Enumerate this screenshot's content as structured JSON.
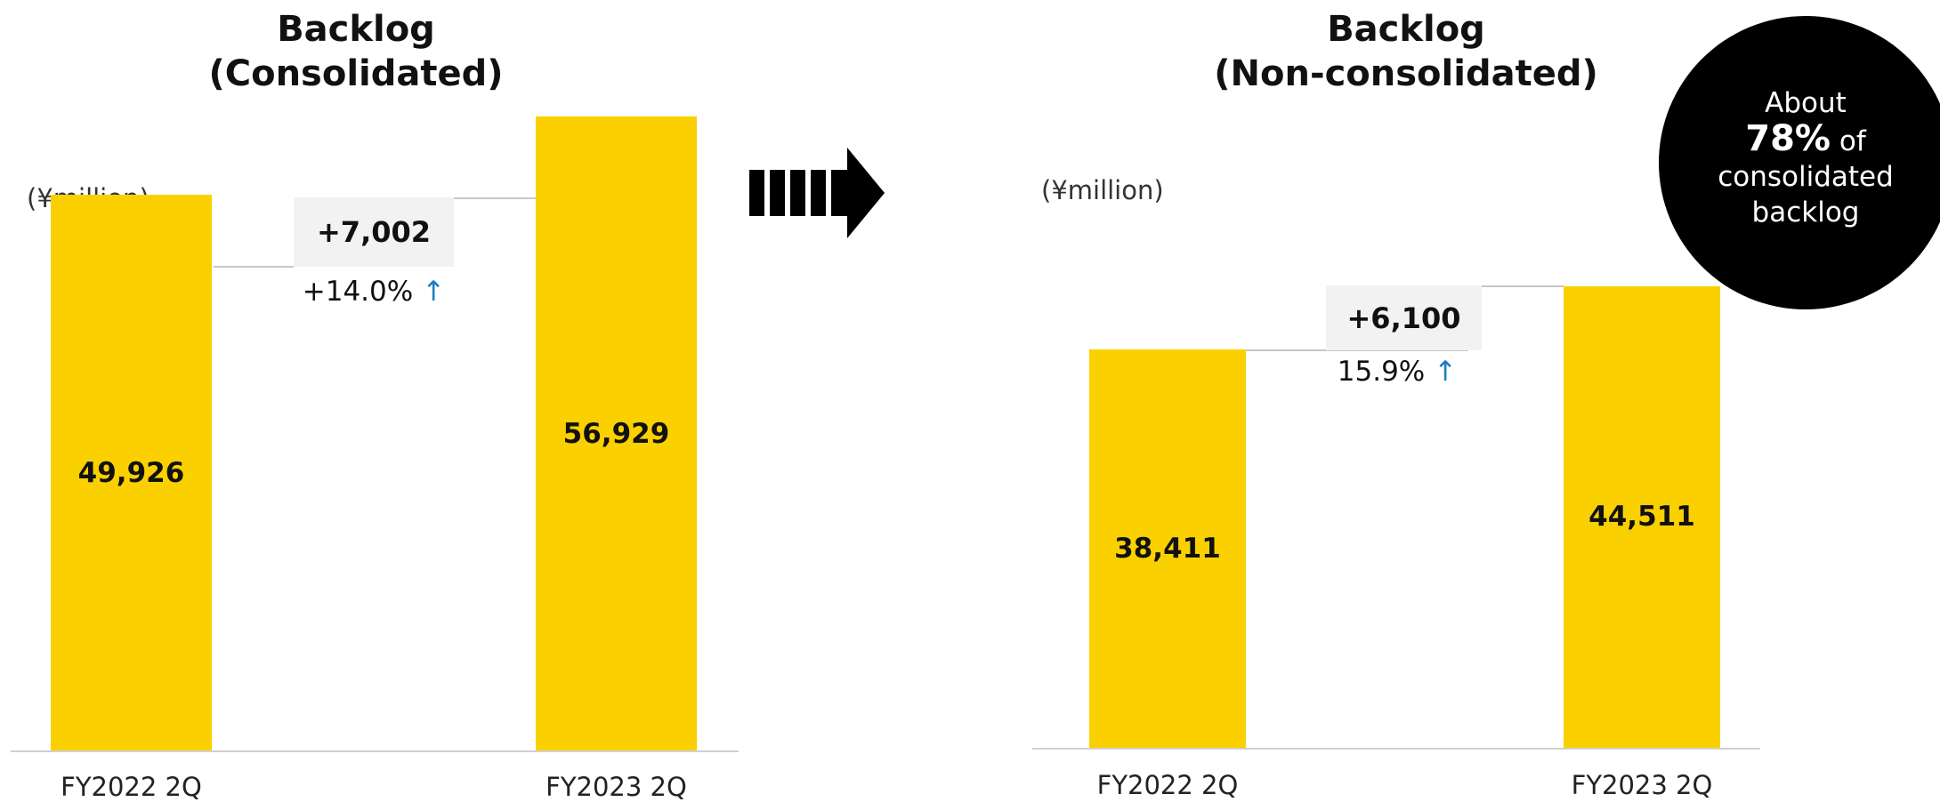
{
  "colors": {
    "bar": "#fbd000",
    "arrow_up": "#1b7fc2",
    "badge_bg": "#000000"
  },
  "chart_data": [
    {
      "type": "bar",
      "title": "Backlog (Consolidated)",
      "title_lines": [
        "Backlog",
        "(Consolidated)"
      ],
      "unit": "(¥million)",
      "categories": [
        "FY2022 2Q",
        "FY2023 2Q"
      ],
      "values": [
        49926,
        56929
      ],
      "value_labels": [
        "49,926",
        "56,929"
      ],
      "ylim": [
        0,
        60000
      ],
      "grid": false,
      "change": {
        "label": "+7,002",
        "pct": "+14.0%",
        "arrow": "↑"
      }
    },
    {
      "type": "bar",
      "title": "Backlog (Non-consolidated)",
      "title_lines": [
        "Backlog",
        "(Non-consolidated)"
      ],
      "unit": "(¥million)",
      "categories": [
        "FY2022 2Q",
        "FY2023 2Q"
      ],
      "values": [
        38411,
        44511
      ],
      "value_labels": [
        "38,411",
        "44,511"
      ],
      "ylim": [
        0,
        50000
      ],
      "grid": false,
      "change": {
        "label": "+6,100",
        "pct": "15.9%",
        "arrow": "↑"
      }
    }
  ],
  "transition_icon": "right-arrow-icon",
  "badge": {
    "line1": "About",
    "big": "78%",
    "big_suffix": "of",
    "line3": "consolidated",
    "line4": "backlog"
  }
}
